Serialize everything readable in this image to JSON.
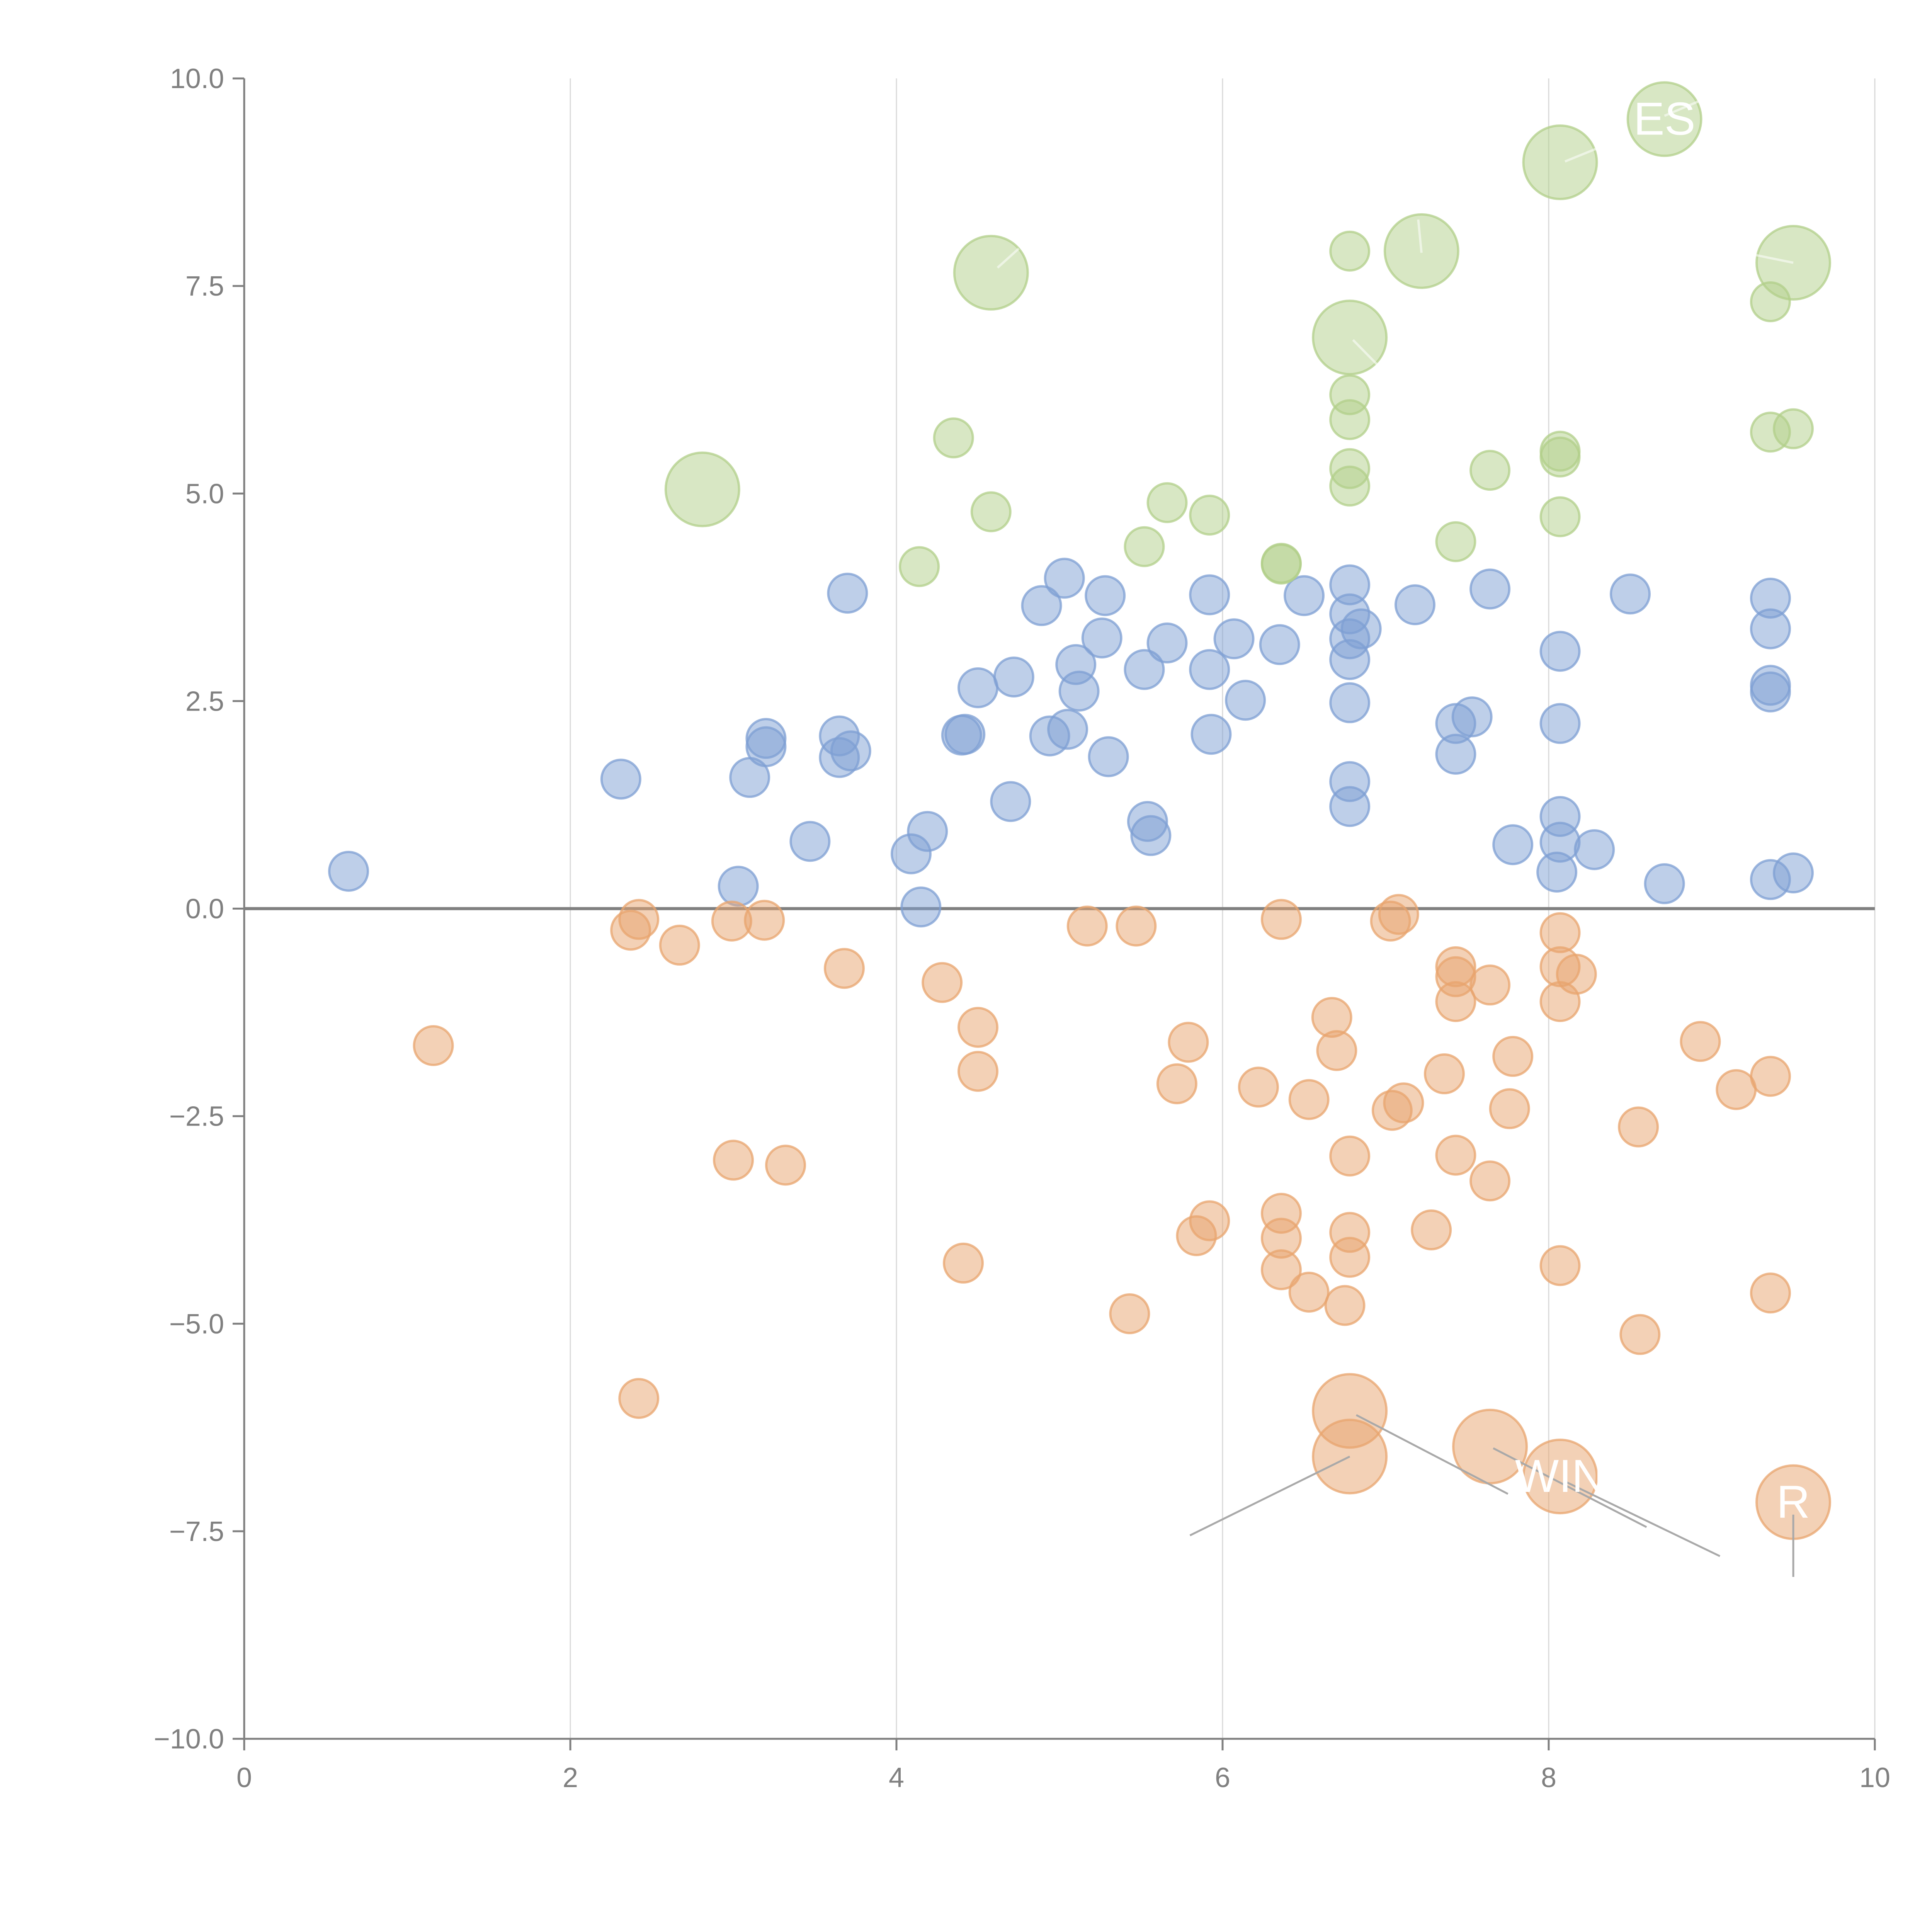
{
  "chart_data": {
    "type": "scatter",
    "title": "",
    "xlabel": "",
    "ylabel": "",
    "xlim": [
      0,
      10
    ],
    "ylim": [
      -10,
      10
    ],
    "x_ticks": [
      "0",
      "2",
      "4",
      "6",
      "8",
      "10"
    ],
    "x_tick_values": [
      0,
      2,
      4,
      6,
      8,
      10
    ],
    "y_ticks": [
      "10.0",
      "7.5",
      "5.0",
      "2.5",
      "0.0",
      "−2.5",
      "−5.0",
      "−7.5",
      "−10.0"
    ],
    "y_tick_values": [
      10,
      7.5,
      5,
      2.5,
      0,
      -2.5,
      -5,
      -7.5,
      -10
    ],
    "grid": "vertical",
    "reference_line_y": 0,
    "colors": {
      "blue": "#7d9fd3",
      "orange": "#e8a46e",
      "green": "#b2cf8a"
    },
    "series": [
      {
        "name": "blue",
        "color": "#7d9fd3",
        "points": [
          [
            0.64,
            0.45,
            1
          ],
          [
            2.31,
            1.56,
            1
          ],
          [
            3.03,
            0.27,
            1
          ],
          [
            3.1,
            1.58,
            1
          ],
          [
            3.2,
            2.05,
            1
          ],
          [
            3.2,
            1.95,
            1
          ],
          [
            3.47,
            0.81,
            1
          ],
          [
            3.65,
            2.08,
            1
          ],
          [
            3.65,
            1.82,
            1
          ],
          [
            3.7,
            3.8,
            1
          ],
          [
            3.72,
            1.9,
            1
          ],
          [
            4.09,
            0.66,
            1
          ],
          [
            4.15,
            0.02,
            1
          ],
          [
            4.19,
            0.93,
            1
          ],
          [
            4.4,
            2.09,
            1
          ],
          [
            4.42,
            2.1,
            1
          ],
          [
            4.5,
            2.66,
            1
          ],
          [
            4.7,
            1.29,
            1
          ],
          [
            4.72,
            2.79,
            1
          ],
          [
            4.89,
            3.65,
            1
          ],
          [
            4.94,
            2.08,
            1
          ],
          [
            5.03,
            3.98,
            1
          ],
          [
            5.05,
            2.16,
            1
          ],
          [
            5.1,
            2.94,
            1
          ],
          [
            5.12,
            2.62,
            1
          ],
          [
            5.26,
            3.26,
            1
          ],
          [
            5.28,
            3.77,
            1
          ],
          [
            5.3,
            1.83,
            1
          ],
          [
            5.52,
            2.88,
            1
          ],
          [
            5.54,
            1.05,
            1
          ],
          [
            5.56,
            0.88,
            1
          ],
          [
            5.66,
            3.2,
            1
          ],
          [
            5.92,
            3.78,
            1
          ],
          [
            5.92,
            2.88,
            1
          ],
          [
            5.93,
            2.1,
            1
          ],
          [
            6.07,
            3.25,
            1
          ],
          [
            6.14,
            2.51,
            1
          ],
          [
            6.35,
            3.18,
            1
          ],
          [
            6.5,
            3.77,
            1
          ],
          [
            6.78,
            3.9,
            1
          ],
          [
            6.78,
            3.55,
            1
          ],
          [
            6.78,
            3.25,
            1
          ],
          [
            6.78,
            3.0,
            1
          ],
          [
            6.78,
            2.48,
            1
          ],
          [
            6.78,
            1.53,
            1
          ],
          [
            6.78,
            1.23,
            1
          ],
          [
            6.85,
            3.37,
            1
          ],
          [
            7.18,
            3.66,
            1
          ],
          [
            7.43,
            2.23,
            1
          ],
          [
            7.43,
            1.86,
            1
          ],
          [
            7.53,
            2.31,
            1
          ],
          [
            7.64,
            3.85,
            1
          ],
          [
            7.78,
            0.77,
            1
          ],
          [
            8.07,
            3.1,
            1
          ],
          [
            8.07,
            2.23,
            1
          ],
          [
            8.07,
            1.11,
            1
          ],
          [
            8.07,
            0.8,
            1
          ],
          [
            8.05,
            0.44,
            1
          ],
          [
            8.28,
            0.71,
            1
          ],
          [
            8.5,
            3.79,
            1
          ],
          [
            8.71,
            0.3,
            1
          ],
          [
            9.36,
            3.74,
            1
          ],
          [
            9.36,
            3.37,
            1
          ],
          [
            9.36,
            2.69,
            1
          ],
          [
            9.36,
            2.61,
            1
          ],
          [
            9.36,
            0.35,
            1
          ],
          [
            9.5,
            0.43,
            1
          ]
        ]
      },
      {
        "name": "orange",
        "color": "#e8a46e",
        "points": [
          [
            1.16,
            -1.65,
            1
          ],
          [
            2.37,
            -0.26,
            1
          ],
          [
            2.42,
            -0.13,
            1
          ],
          [
            2.42,
            -5.9,
            1
          ],
          [
            2.67,
            -0.44,
            1
          ],
          [
            2.99,
            -0.15,
            1
          ],
          [
            3.0,
            -3.03,
            1
          ],
          [
            3.19,
            -0.14,
            1
          ],
          [
            3.32,
            -3.09,
            1
          ],
          [
            3.68,
            -0.72,
            1
          ],
          [
            4.28,
            -0.89,
            1
          ],
          [
            4.41,
            -4.27,
            1
          ],
          [
            4.5,
            -1.43,
            1
          ],
          [
            4.5,
            -1.96,
            1
          ],
          [
            5.17,
            -0.21,
            1
          ],
          [
            5.43,
            -4.88,
            1
          ],
          [
            5.47,
            -0.21,
            1
          ],
          [
            5.72,
            -2.11,
            1
          ],
          [
            5.79,
            -1.61,
            1
          ],
          [
            5.84,
            -3.94,
            1
          ],
          [
            5.92,
            -3.76,
            1
          ],
          [
            6.22,
            -2.15,
            1
          ],
          [
            6.36,
            -0.13,
            1
          ],
          [
            6.36,
            -3.67,
            1
          ],
          [
            6.36,
            -3.97,
            1
          ],
          [
            6.36,
            -4.35,
            1
          ],
          [
            6.53,
            -4.62,
            1
          ],
          [
            6.53,
            -2.3,
            1
          ],
          [
            6.67,
            -1.31,
            1
          ],
          [
            6.7,
            -1.71,
            1
          ],
          [
            6.75,
            -4.78,
            1
          ],
          [
            6.78,
            -2.98,
            1
          ],
          [
            6.78,
            -3.9,
            1
          ],
          [
            6.78,
            -4.2,
            1
          ],
          [
            7.03,
            -0.15,
            1
          ],
          [
            7.08,
            -0.07,
            1
          ],
          [
            7.04,
            -2.43,
            1
          ],
          [
            7.11,
            -2.34,
            1
          ],
          [
            7.28,
            -3.87,
            1
          ],
          [
            7.36,
            -1.99,
            1
          ],
          [
            7.43,
            -0.7,
            1
          ],
          [
            7.43,
            -0.82,
            1
          ],
          [
            7.43,
            -1.12,
            1
          ],
          [
            7.43,
            -2.97,
            1
          ],
          [
            7.64,
            -0.92,
            1
          ],
          [
            7.64,
            -3.28,
            1
          ],
          [
            7.76,
            -2.41,
            1
          ],
          [
            7.78,
            -1.78,
            1
          ],
          [
            8.07,
            -0.29,
            1
          ],
          [
            8.07,
            -0.7,
            1
          ],
          [
            8.07,
            -1.12,
            1
          ],
          [
            8.07,
            -4.3,
            1
          ],
          [
            8.17,
            -0.79,
            1
          ],
          [
            8.55,
            -2.63,
            1
          ],
          [
            8.56,
            -5.13,
            1
          ],
          [
            8.93,
            -1.6,
            1
          ],
          [
            9.15,
            -2.18,
            1
          ],
          [
            9.36,
            -2.02,
            1
          ],
          [
            9.36,
            -4.63,
            1
          ],
          [
            6.78,
            -6.05,
            3
          ],
          [
            6.78,
            -6.6,
            3
          ],
          [
            7.64,
            -6.48,
            3
          ],
          [
            8.07,
            -6.84,
            3
          ],
          [
            9.5,
            -7.15,
            3
          ]
        ]
      },
      {
        "name": "green",
        "color": "#b2cf8a",
        "points": [
          [
            2.81,
            5.05,
            3
          ],
          [
            4.14,
            4.12,
            1
          ],
          [
            4.35,
            5.67,
            1
          ],
          [
            4.58,
            4.78,
            1
          ],
          [
            4.58,
            7.66,
            3
          ],
          [
            5.52,
            4.36,
            1
          ],
          [
            5.66,
            4.89,
            1
          ],
          [
            5.92,
            4.74,
            1
          ],
          [
            6.36,
            4.16,
            1
          ],
          [
            6.36,
            4.15,
            1
          ],
          [
            6.78,
            7.92,
            1
          ],
          [
            6.78,
            6.88,
            3
          ],
          [
            6.78,
            6.19,
            1
          ],
          [
            6.78,
            5.89,
            1
          ],
          [
            6.78,
            5.3,
            1
          ],
          [
            6.78,
            5.09,
            1
          ],
          [
            7.22,
            7.92,
            3
          ],
          [
            7.43,
            4.42,
            1
          ],
          [
            7.64,
            5.28,
            1
          ],
          [
            8.07,
            8.99,
            3
          ],
          [
            8.07,
            5.51,
            1
          ],
          [
            8.07,
            5.44,
            1
          ],
          [
            8.07,
            4.72,
            1
          ],
          [
            8.71,
            9.51,
            3
          ],
          [
            9.36,
            7.31,
            1
          ],
          [
            9.36,
            5.74,
            1
          ],
          [
            9.5,
            7.78,
            3
          ],
          [
            9.5,
            5.78,
            1
          ]
        ]
      }
    ],
    "annotations": [
      {
        "text": "WIN",
        "x": 8.07,
        "y": -6.84
      },
      {
        "text": "R",
        "x": 9.5,
        "y": -7.15
      },
      {
        "text": "ES",
        "x": 8.71,
        "y": 9.51
      }
    ]
  }
}
